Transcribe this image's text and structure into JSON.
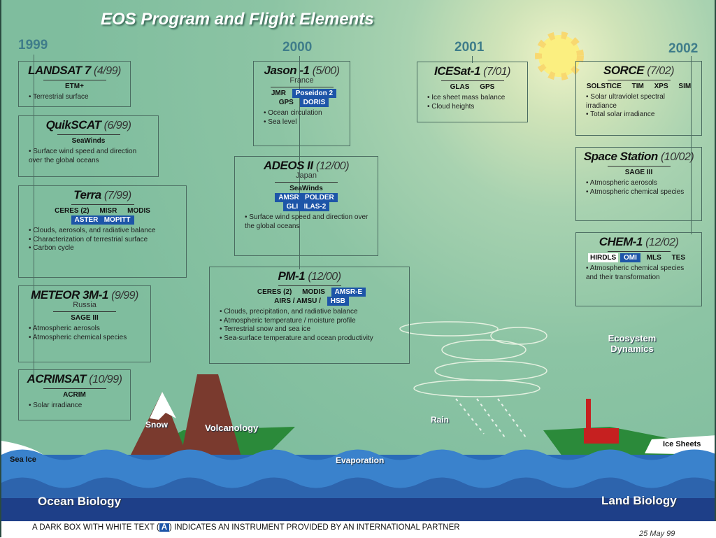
{
  "title": "EOS Program and Flight Elements",
  "years": [
    "1999",
    "2000",
    "2001",
    "2002"
  ],
  "colors": {
    "partner_box": "#1d55a8",
    "background": "#8cc4a4",
    "year": "#3f7d8a"
  },
  "missions": [
    {
      "name": "LANDSAT 7",
      "date": "(4/99)",
      "instruments": [
        [
          {
            "t": "ETM+"
          }
        ]
      ],
      "bullets": [
        "Terrestrial surface"
      ]
    },
    {
      "name": "QuikSCAT",
      "date": "(6/99)",
      "instruments": [
        [
          {
            "t": "SeaWinds"
          }
        ]
      ],
      "bullets": [
        "Surface wind speed and direction over the global oceans"
      ]
    },
    {
      "name": "Terra",
      "date": "(7/99)",
      "instruments": [
        [
          {
            "t": "CERES (2)"
          },
          {
            "t": "MISR"
          },
          {
            "t": "MODIS"
          }
        ],
        [
          {
            "t": "ASTER   MOPITT",
            "partner": true
          }
        ]
      ],
      "bullets": [
        "Clouds, aerosols, and radiative balance",
        "Characterization of terrestrial surface",
        "Carbon cycle"
      ]
    },
    {
      "name": "METEOR 3M-1",
      "date": "(9/99)",
      "country": "Russia",
      "instruments": [
        [
          {
            "t": "SAGE III"
          }
        ]
      ],
      "bullets": [
        "Atmospheric aerosols",
        "Atmospheric chemical species"
      ]
    },
    {
      "name": "ACRIMSAT",
      "date": "(10/99)",
      "instruments": [
        [
          {
            "t": "ACRIM"
          }
        ]
      ],
      "bullets": [
        "Solar irradiance"
      ]
    },
    {
      "name": "Jason -1",
      "date": "(5/00)",
      "country": "France",
      "instruments": [
        [
          {
            "t": "JMR"
          },
          {
            "t": "Poseidon 2",
            "partner": true
          }
        ],
        [
          {
            "t": "GPS"
          },
          {
            "t": "DORIS",
            "partner": true
          }
        ]
      ],
      "bullets": [
        "Ocean circulation",
        "Sea level"
      ]
    },
    {
      "name": "ADEOS II",
      "date": "(12/00)",
      "country": "Japan",
      "instruments": [
        [
          {
            "t": "SeaWinds"
          }
        ],
        [
          {
            "t": "AMSR   POLDER",
            "partner": true
          }
        ],
        [
          {
            "t": "GLI   ILAS-2",
            "partner": true
          }
        ]
      ],
      "bullets": [
        "Surface wind speed and direction over the global oceans"
      ]
    },
    {
      "name": "PM-1",
      "date": "(12/00)",
      "instruments": [
        [
          {
            "t": "CERES (2)"
          },
          {
            "t": "MODIS"
          },
          {
            "t": "AMSR-E",
            "partner": true
          }
        ],
        [
          {
            "t": "AIRS / AMSU /"
          },
          {
            "t": "HSB",
            "partner": true
          }
        ]
      ],
      "bullets": [
        "Clouds, precipitation, and radiative balance",
        "Atmospheric temperature / moisture profile",
        "Terrestrial snow and sea ice",
        "Sea-surface temperature and ocean productivity"
      ]
    },
    {
      "name": "ICESat-1",
      "date": "(7/01)",
      "instruments": [
        [
          {
            "t": "GLAS"
          },
          {
            "t": "GPS"
          }
        ]
      ],
      "bullets": [
        "Ice sheet mass balance",
        "Cloud heights"
      ]
    },
    {
      "name": "SORCE",
      "date": "(7/02)",
      "instruments": [
        [
          {
            "t": "SOLSTICE"
          },
          {
            "t": "TIM"
          },
          {
            "t": "XPS"
          },
          {
            "t": "SIM"
          }
        ]
      ],
      "bullets": [
        "Solar ultraviolet spectral irradiance",
        "Total solar irradiance"
      ]
    },
    {
      "name": "Space Station",
      "date": "(10/02)",
      "instruments": [
        [
          {
            "t": "SAGE III"
          }
        ]
      ],
      "bullets": [
        "Atmospheric aerosols",
        "Atmospheric chemical species"
      ]
    },
    {
      "name": "CHEM-1",
      "date": "(12/02)",
      "instruments": [
        [
          {
            "t": "HIRDLS",
            "white": true
          },
          {
            "t": "OMI",
            "partner": true
          },
          {
            "t": "MLS"
          },
          {
            "t": "TES"
          }
        ]
      ],
      "bullets": [
        "Atmospheric chemical species and their transformation"
      ]
    }
  ],
  "scene": {
    "snow": "Snow",
    "volcanology": "Volcanology",
    "sea_ice": "Sea Ice",
    "evaporation": "Evaporation",
    "rain": "Rain",
    "ecosystem": "Ecosystem Dynamics",
    "ice_sheets": "Ice Sheets",
    "ocean_biology": "Ocean Biology",
    "land_biology": "Land Biology"
  },
  "footer": {
    "note_before": "A DARK BOX WITH WHITE TEXT (",
    "note_icon": "A",
    "note_after": ") INDICATES AN INSTRUMENT PROVIDED BY AN INTERNATIONAL PARTNER",
    "date": "25 May 99"
  }
}
